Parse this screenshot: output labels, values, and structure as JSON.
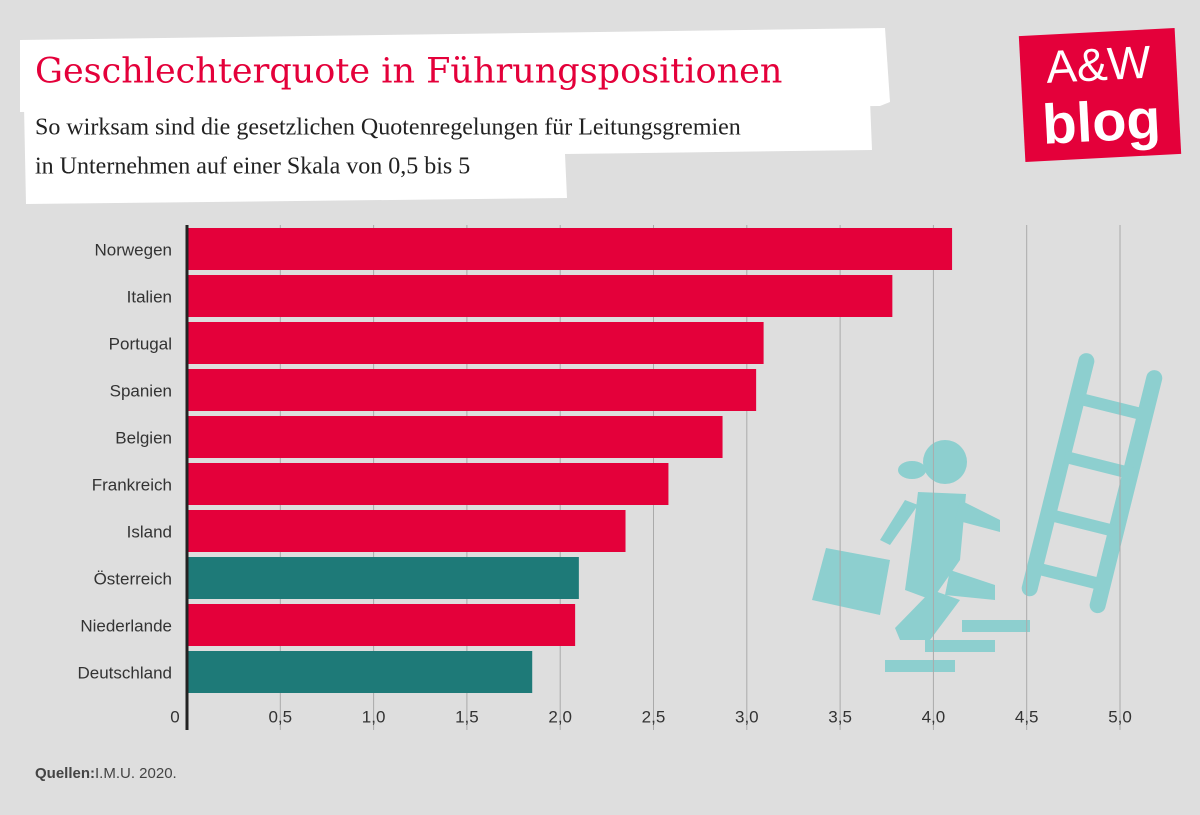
{
  "chart_data": {
    "type": "hbar",
    "title": "Geschlechterquote in Führungspositionen",
    "subtitle": [
      "So wirksam sind die gesetzlichen Quotenregelungen für Leitungsgremien",
      "in Unternehmen auf einer Skala von 0,5 bis 5"
    ],
    "categories": [
      "Norwegen",
      "Italien",
      "Portugal",
      "Spanien",
      "Belgien",
      "Frankreich",
      "Island",
      "Österreich",
      "Niederlande",
      "Deutschland"
    ],
    "values": [
      4.1,
      3.78,
      3.09,
      3.05,
      2.87,
      2.58,
      2.35,
      2.1,
      2.08,
      1.85
    ],
    "colors": [
      "#e4003a",
      "#e4003a",
      "#e4003a",
      "#e4003a",
      "#e4003a",
      "#e4003a",
      "#e4003a",
      "#1e7a78",
      "#e4003a",
      "#1e7a78"
    ],
    "xlim": [
      0,
      5.15
    ],
    "xticks": [
      0,
      {
        "value": 0.5,
        "label": "0,5"
      },
      {
        "value": 1,
        "label": "1,0"
      },
      {
        "value": 1.5,
        "label": "1,5"
      },
      {
        "value": 2,
        "label": "2,0"
      },
      {
        "value": 2.5,
        "label": "2,5"
      },
      {
        "value": 3,
        "label": "3,0"
      },
      {
        "value": 3.5,
        "label": "3,5"
      },
      {
        "value": 4,
        "label": "4,0"
      },
      {
        "value": 4.5,
        "label": "4,5"
      },
      {
        "value": 5,
        "label": "5,0"
      }
    ],
    "grid": true,
    "source_label": "Quellen:",
    "source": "I.M.U. 2020.",
    "logo": [
      "A&W",
      "blog"
    ]
  }
}
